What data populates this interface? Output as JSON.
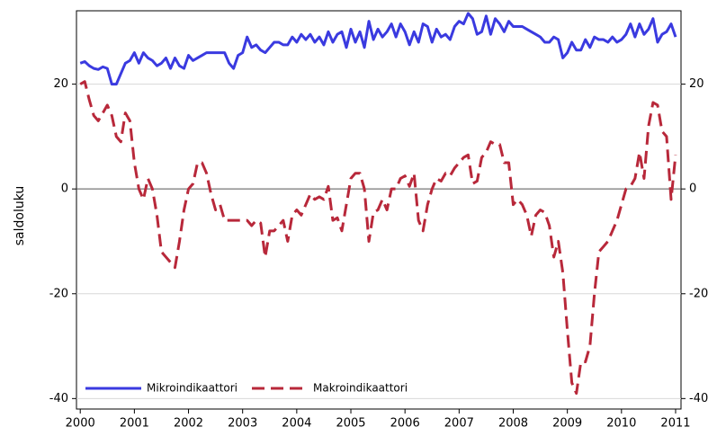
{
  "chart_data": {
    "type": "line",
    "y_label": "saldoluku",
    "x": [
      2000,
      2000.083,
      2000.167,
      2000.25,
      2000.333,
      2000.417,
      2000.5,
      2000.583,
      2000.667,
      2000.75,
      2000.833,
      2000.917,
      2001,
      2001.083,
      2001.167,
      2001.25,
      2001.333,
      2001.417,
      2001.5,
      2001.583,
      2001.667,
      2001.75,
      2001.833,
      2001.917,
      2002,
      2002.083,
      2002.167,
      2002.25,
      2002.333,
      2002.417,
      2002.5,
      2002.583,
      2002.667,
      2002.75,
      2002.833,
      2002.917,
      2003,
      2003.083,
      2003.167,
      2003.25,
      2003.333,
      2003.417,
      2003.5,
      2003.583,
      2003.667,
      2003.75,
      2003.833,
      2003.917,
      2004,
      2004.083,
      2004.167,
      2004.25,
      2004.333,
      2004.417,
      2004.5,
      2004.583,
      2004.667,
      2004.75,
      2004.833,
      2004.917,
      2005,
      2005.083,
      2005.167,
      2005.25,
      2005.333,
      2005.417,
      2005.5,
      2005.583,
      2005.667,
      2005.75,
      2005.833,
      2005.917,
      2006,
      2006.083,
      2006.167,
      2006.25,
      2006.333,
      2006.417,
      2006.5,
      2006.583,
      2006.667,
      2006.75,
      2006.833,
      2006.917,
      2007,
      2007.083,
      2007.167,
      2007.25,
      2007.333,
      2007.417,
      2007.5,
      2007.583,
      2007.667,
      2007.75,
      2007.833,
      2007.917,
      2008,
      2008.083,
      2008.167,
      2008.25,
      2008.333,
      2008.417,
      2008.5,
      2008.583,
      2008.667,
      2008.75,
      2008.833,
      2008.917,
      2009,
      2009.083,
      2009.167,
      2009.25,
      2009.333,
      2009.417,
      2009.5,
      2009.583,
      2009.667,
      2009.75,
      2009.833,
      2009.917,
      2010,
      2010.083,
      2010.167,
      2010.25,
      2010.333,
      2010.417,
      2010.5,
      2010.583,
      2010.667,
      2010.75,
      2010.833,
      2010.917,
      2011
    ],
    "series": [
      {
        "name": "Mikroindikaattori",
        "color": "#3a3ae0",
        "dash": "none",
        "values": [
          24,
          24.3,
          23.5,
          23,
          22.8,
          23.3,
          23,
          20,
          20,
          22,
          24,
          24.5,
          26,
          24,
          26,
          25,
          24.5,
          23.5,
          24,
          25,
          23,
          25,
          23.5,
          23,
          25.5,
          24.5,
          25,
          25.5,
          26,
          26,
          26,
          26,
          26,
          24,
          23,
          25.5,
          26,
          29,
          27,
          27.5,
          26.5,
          26,
          27,
          28,
          28,
          27.5,
          27.5,
          29,
          28,
          29.5,
          28.5,
          29.5,
          28,
          29,
          27.5,
          30,
          28,
          29.5,
          30,
          27,
          30.5,
          28,
          30,
          27,
          32,
          28.5,
          30.5,
          29,
          30,
          31.5,
          29,
          31.5,
          30,
          27.5,
          30,
          28,
          31.5,
          31,
          28,
          30.5,
          29,
          29.5,
          28.5,
          31,
          32,
          31.5,
          33.5,
          32.5,
          29.5,
          30,
          33,
          29.5,
          32.5,
          31.5,
          30,
          32,
          31,
          31,
          31,
          30.5,
          30,
          29.5,
          29,
          28,
          28,
          29,
          28.5,
          25,
          26,
          28,
          26.5,
          26.5,
          28.5,
          27,
          29,
          28.5,
          28.5,
          28,
          29,
          28,
          28.5,
          29.5,
          31.5,
          29,
          31.5,
          29.5,
          30.5,
          32.5,
          28,
          29.5,
          30,
          31.5,
          29
        ]
      },
      {
        "name": "Makroindikaattori",
        "color": "#b8283a",
        "dash": "14,7",
        "values": [
          20,
          20.5,
          17,
          14,
          13,
          14.5,
          16,
          14,
          10,
          9,
          14.5,
          13,
          5,
          0,
          -2,
          2,
          0,
          -5,
          -12,
          -13,
          -14,
          -15,
          -10,
          -4,
          0,
          1,
          5,
          5,
          3,
          -1,
          -4,
          -3,
          -6,
          -6,
          -6,
          -6,
          -6,
          -6,
          -7,
          -6,
          -6.5,
          -13,
          -8,
          -8,
          -7,
          -6,
          -10,
          -5,
          -4,
          -5,
          -3,
          -1,
          -2,
          -1.5,
          -2,
          0.5,
          -6,
          -5.5,
          -8,
          -3,
          2,
          3,
          3,
          0,
          -10,
          -4.5,
          -4,
          -2,
          -4,
          0,
          0,
          2,
          2.5,
          0.5,
          3,
          -6,
          -8,
          -3,
          0,
          2,
          1.5,
          3,
          2.5,
          4,
          5,
          6,
          6.5,
          1,
          1.5,
          6,
          7,
          9,
          8.5,
          8.5,
          5,
          5,
          -3,
          -2,
          -3,
          -5,
          -9,
          -5,
          -4,
          -4.5,
          -7,
          -13,
          -10,
          -16,
          -27,
          -37,
          -39,
          -33,
          -33,
          -30,
          -20,
          -12,
          -11,
          -10,
          -8,
          -6,
          -3,
          0,
          0.5,
          2,
          7,
          2,
          12,
          16.5,
          16,
          11,
          10,
          -2,
          6.5
        ]
      }
    ],
    "xlim": [
      1999.93,
      2011.1
    ],
    "ylim": [
      -42,
      34
    ],
    "xticks": [
      2000,
      2001,
      2002,
      2003,
      2004,
      2005,
      2006,
      2007,
      2008,
      2009,
      2010,
      2011
    ],
    "yticks": [
      -40,
      -20,
      0,
      20
    ],
    "grid": true,
    "legend": "bottom-left"
  }
}
